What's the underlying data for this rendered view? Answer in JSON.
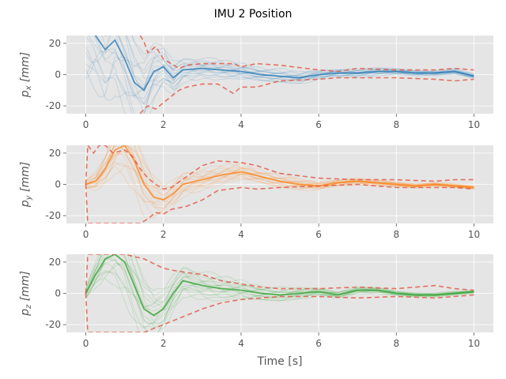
{
  "figure": {
    "title": "IMU 2 Position",
    "xlabel": "Time [s]"
  },
  "colors": {
    "panel_bg": "#e5e5e5",
    "grid": "#ffffff",
    "bound": "#e24a33",
    "x_series": "#1f77b4",
    "y_series": "#ff7f0e",
    "z_series": "#2ca02c"
  },
  "chart_data": [
    {
      "type": "line",
      "ylabel_var": "p",
      "ylabel_sub": "x",
      "ylabel_unit": "[mm]",
      "xlim": [
        -0.5,
        10.5
      ],
      "ylim": [
        -25,
        25
      ],
      "xticks": [
        0,
        2,
        4,
        6,
        8,
        10
      ],
      "yticks": [
        -20,
        0,
        20
      ],
      "grid": true,
      "color_key": "x_series",
      "mean": {
        "x": [
          0,
          0.25,
          0.5,
          0.75,
          1,
          1.25,
          1.5,
          1.75,
          2,
          2.25,
          2.5,
          3,
          3.5,
          4,
          4.5,
          5,
          5.5,
          6,
          6.5,
          7,
          7.5,
          8,
          8.5,
          9,
          9.5,
          10
        ],
        "y": [
          30,
          25,
          16,
          22,
          10,
          -5,
          -10,
          2,
          5,
          -2,
          3,
          4,
          3,
          2,
          0,
          -1,
          -2,
          0,
          1,
          1,
          2,
          2,
          1,
          1,
          2,
          -1
        ]
      },
      "spread": {
        "x": [
          0,
          0.5,
          1,
          1.5,
          2,
          2.5,
          3,
          4,
          5,
          6,
          7,
          8,
          9,
          10
        ],
        "y": [
          40,
          35,
          30,
          22,
          14,
          8,
          6,
          5,
          4,
          3,
          2.5,
          2,
          1.5,
          1.5
        ]
      },
      "upper_bound": {
        "x": [
          1.4,
          1.5,
          1.6,
          1.8,
          2,
          2.2,
          2.4,
          2.6,
          3,
          3.4,
          3.8,
          4,
          4.4,
          5,
          6,
          6.5,
          7,
          8,
          9,
          9.5,
          10
        ],
        "y": [
          25,
          21,
          14,
          18,
          10,
          7,
          4,
          6,
          7,
          7,
          7,
          5,
          7,
          6,
          3,
          2,
          4,
          3,
          3,
          4,
          3
        ]
      },
      "lower_bound": {
        "x": [
          1.4,
          1.5,
          1.6,
          1.8,
          2,
          2.2,
          2.4,
          2.6,
          3,
          3.4,
          3.8,
          4,
          4.4,
          5,
          6,
          6.5,
          7,
          8,
          9,
          9.5,
          10
        ],
        "y": [
          -25,
          -22,
          -20,
          -22,
          -18,
          -14,
          -10,
          -8,
          -6,
          -6,
          -12,
          -8,
          -8,
          -4,
          -3,
          -2,
          -2,
          -2,
          -3,
          -4,
          -3
        ]
      }
    },
    {
      "type": "line",
      "ylabel_var": "p",
      "ylabel_sub": "y",
      "ylabel_unit": "[mm]",
      "xlim": [
        -0.5,
        10.5
      ],
      "ylim": [
        -25,
        25
      ],
      "xticks": [
        0,
        2,
        4,
        6,
        8,
        10
      ],
      "yticks": [
        -20,
        0,
        20
      ],
      "grid": true,
      "color_key": "y_series",
      "mean": {
        "x": [
          0,
          0.25,
          0.5,
          0.75,
          1,
          1.25,
          1.5,
          1.75,
          2,
          2.25,
          2.5,
          3,
          3.5,
          4,
          4.5,
          5,
          5.5,
          6,
          6.5,
          7,
          7.5,
          8,
          8.5,
          9,
          9.5,
          10
        ],
        "y": [
          0,
          2,
          10,
          22,
          25,
          15,
          0,
          -8,
          -10,
          -6,
          0,
          3,
          6,
          8,
          5,
          2,
          0,
          -1,
          1,
          2,
          1,
          0,
          -1,
          0,
          -1,
          -2
        ]
      },
      "spread": {
        "x": [
          0,
          0.5,
          1,
          1.5,
          2,
          2.5,
          3,
          4,
          5,
          6,
          7,
          8,
          9,
          10
        ],
        "y": [
          3,
          10,
          18,
          16,
          10,
          8,
          6,
          5,
          4,
          2.5,
          2,
          1.5,
          1.2,
          1
        ]
      },
      "upper_bound": {
        "x": [
          0,
          0.05,
          0.2,
          0.35,
          0.5,
          0.7,
          1,
          1.2,
          1.4,
          1.6,
          1.8,
          2,
          2.2,
          2.6,
          3,
          3.4,
          4,
          4.4,
          5,
          6,
          7,
          8,
          9,
          9.5,
          10
        ],
        "y": [
          0,
          25,
          20,
          25,
          25,
          20,
          22,
          18,
          10,
          4,
          0,
          -3,
          -2,
          5,
          12,
          15,
          14,
          12,
          7,
          4,
          3,
          3,
          2,
          3,
          3
        ]
      },
      "lower_bound": {
        "x": [
          0,
          0.05,
          0.2,
          0.35,
          0.5,
          0.7,
          1,
          1.2,
          1.4,
          1.6,
          1.8,
          2,
          2.2,
          2.6,
          3,
          3.4,
          4,
          4.4,
          5,
          6,
          7,
          8,
          9,
          9.5,
          10
        ],
        "y": [
          0,
          -25,
          -25,
          -25,
          -25,
          -25,
          -25,
          -25,
          -25,
          -22,
          -18,
          -19,
          -16,
          -14,
          -10,
          -4,
          -2,
          -3,
          -2,
          -1,
          0,
          -2,
          -2,
          -2,
          -3
        ]
      }
    },
    {
      "type": "line",
      "ylabel_var": "p",
      "ylabel_sub": "z",
      "ylabel_unit": "[mm]",
      "xlim": [
        -0.5,
        10.5
      ],
      "ylim": [
        -25,
        25
      ],
      "xticks": [
        0,
        2,
        4,
        6,
        8,
        10
      ],
      "yticks": [
        -20,
        0,
        20
      ],
      "grid": true,
      "color_key": "z_series",
      "mean": {
        "x": [
          0,
          0.25,
          0.5,
          0.75,
          1,
          1.25,
          1.5,
          1.75,
          2,
          2.25,
          2.5,
          3,
          3.5,
          4,
          4.5,
          5,
          5.5,
          6,
          6.5,
          7,
          7.5,
          8,
          8.5,
          9,
          9.5,
          10
        ],
        "y": [
          0,
          12,
          22,
          25,
          20,
          5,
          -10,
          -14,
          -10,
          0,
          8,
          5,
          3,
          2,
          0,
          -1,
          0,
          1,
          -1,
          2,
          2,
          0,
          -1,
          -1,
          0,
          1
        ]
      },
      "spread": {
        "x": [
          0,
          0.5,
          1,
          1.5,
          2,
          2.5,
          3,
          4,
          5,
          6,
          7,
          8,
          9,
          10
        ],
        "y": [
          4,
          14,
          22,
          18,
          14,
          10,
          8,
          6,
          4,
          2.5,
          2,
          1.5,
          1.2,
          1
        ]
      },
      "upper_bound": {
        "x": [
          0,
          0.05,
          0.3,
          0.6,
          1,
          1.5,
          2,
          2.4,
          3,
          3.5,
          4,
          4.5,
          5,
          6,
          7,
          8,
          9,
          9.5,
          10
        ],
        "y": [
          0,
          25,
          25,
          25,
          25,
          22,
          16,
          14,
          12,
          8,
          6,
          4,
          3,
          3,
          4,
          3,
          5,
          3,
          2
        ]
      },
      "lower_bound": {
        "x": [
          0,
          0.05,
          0.3,
          0.6,
          1,
          1.5,
          2,
          2.4,
          3,
          3.5,
          4,
          4.5,
          5,
          6,
          7,
          8,
          9,
          9.5,
          10
        ],
        "y": [
          0,
          -25,
          -25,
          -25,
          -25,
          -25,
          -20,
          -16,
          -10,
          -6,
          -4,
          -3,
          -2,
          -2,
          -3,
          -2,
          -3,
          -2,
          -1
        ]
      }
    }
  ]
}
